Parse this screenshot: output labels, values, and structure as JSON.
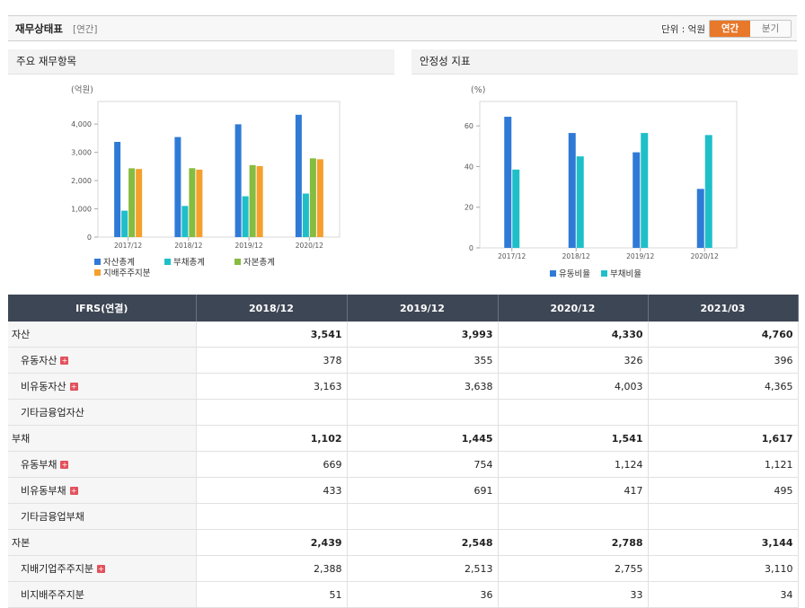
{
  "header": {
    "title": "재무상태표",
    "period": "[연간]",
    "unit_label": "단위 : 억원",
    "toggle": {
      "annual": "연간",
      "quarterly": "분기"
    }
  },
  "colors": {
    "asset": "#2f7ad6",
    "liability": "#1fbfc9",
    "equity": "#86bc3f",
    "owner": "#f5a02c",
    "accent": "#e8782a"
  },
  "chart_data": [
    {
      "type": "bar",
      "title": "주요 재무항목",
      "ylabel": "(억원)",
      "categories": [
        "2017/12",
        "2018/12",
        "2019/12",
        "2020/12"
      ],
      "ylim": [
        0,
        4800
      ],
      "yticks": [
        0,
        1000,
        2000,
        3000,
        4000
      ],
      "ytick_labels": [
        "0",
        "1,000",
        "2,000",
        "3,000",
        "4,000"
      ],
      "series": [
        {
          "name": "자산총계",
          "values": [
            3370,
            3541,
            3993,
            4330
          ]
        },
        {
          "name": "부채총계",
          "values": [
            935,
            1102,
            1445,
            1541
          ]
        },
        {
          "name": "자본총계",
          "values": [
            2435,
            2439,
            2548,
            2788
          ]
        },
        {
          "name": "지배주주지분",
          "values": [
            2410,
            2388,
            2513,
            2755
          ]
        }
      ],
      "legend": "bottom",
      "grid": false
    },
    {
      "type": "bar",
      "title": "안정성 지표",
      "ylabel": "(%)",
      "categories": [
        "2017/12",
        "2018/12",
        "2019/12",
        "2020/12"
      ],
      "ylim": [
        0,
        72
      ],
      "yticks": [
        0,
        20,
        40,
        60
      ],
      "ytick_labels": [
        "0",
        "20",
        "40",
        "60"
      ],
      "series": [
        {
          "name": "유동비율",
          "values": [
            64.5,
            56.5,
            47,
            29
          ]
        },
        {
          "name": "부채비율",
          "values": [
            38.5,
            45,
            56.5,
            55.5
          ]
        }
      ],
      "legend": "bottom",
      "grid": false
    }
  ],
  "table": {
    "header": [
      "IFRS(연결)",
      "2018/12",
      "2019/12",
      "2020/12",
      "2021/03"
    ],
    "rows": [
      {
        "label": "자산",
        "level": "main",
        "expand": false,
        "values": [
          "3,541",
          "3,993",
          "4,330",
          "4,760"
        ]
      },
      {
        "label": "유동자산",
        "level": "sub",
        "expand": true,
        "values": [
          "378",
          "355",
          "326",
          "396"
        ]
      },
      {
        "label": "비유동자산",
        "level": "sub",
        "expand": true,
        "values": [
          "3,163",
          "3,638",
          "4,003",
          "4,365"
        ]
      },
      {
        "label": "기타금융업자산",
        "level": "sub",
        "expand": false,
        "values": [
          "",
          "",
          "",
          ""
        ]
      },
      {
        "label": "부채",
        "level": "main",
        "expand": false,
        "values": [
          "1,102",
          "1,445",
          "1,541",
          "1,617"
        ]
      },
      {
        "label": "유동부채",
        "level": "sub",
        "expand": true,
        "values": [
          "669",
          "754",
          "1,124",
          "1,121"
        ]
      },
      {
        "label": "비유동부채",
        "level": "sub",
        "expand": true,
        "values": [
          "433",
          "691",
          "417",
          "495"
        ]
      },
      {
        "label": "기타금융업부채",
        "level": "sub",
        "expand": false,
        "values": [
          "",
          "",
          "",
          ""
        ]
      },
      {
        "label": "자본",
        "level": "main",
        "expand": false,
        "values": [
          "2,439",
          "2,548",
          "2,788",
          "3,144"
        ]
      },
      {
        "label": "지배기업주주지분",
        "level": "sub",
        "expand": true,
        "values": [
          "2,388",
          "2,513",
          "2,755",
          "3,110"
        ]
      },
      {
        "label": "비지배주주지분",
        "level": "sub",
        "expand": false,
        "values": [
          "51",
          "36",
          "33",
          "34"
        ]
      }
    ]
  }
}
